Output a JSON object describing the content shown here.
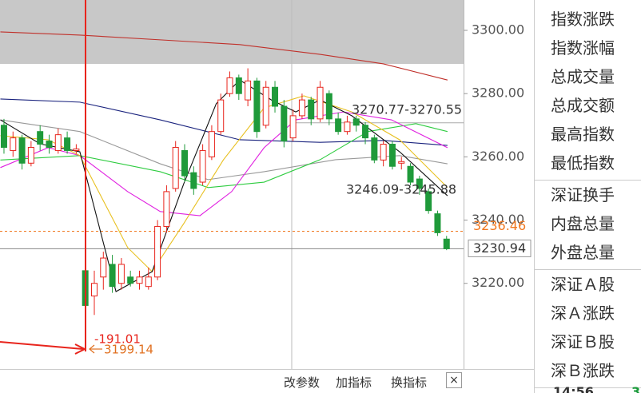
{
  "chart_data": {
    "type": "candlestick",
    "x": [
      0,
      1,
      2,
      3,
      4,
      5,
      6,
      7,
      8,
      9,
      10,
      11,
      12,
      13,
      14,
      15,
      16,
      17,
      18,
      19,
      20,
      21,
      22,
      23,
      24,
      25,
      26,
      27,
      28,
      29,
      30,
      31,
      32,
      33,
      34,
      35,
      36,
      37,
      38,
      39,
      40,
      41,
      42,
      43,
      44,
      45,
      46,
      47,
      48,
      49
    ],
    "open": [
      3270,
      3262,
      3266,
      3258,
      3268,
      3265,
      3262,
      3266,
      3262,
      3224,
      3216,
      3222,
      3226,
      3220,
      3222,
      3220,
      3219,
      3222,
      3238,
      3250,
      3262,
      3255,
      3252,
      3260,
      3268,
      3280,
      3285,
      3278,
      3284,
      3270,
      3282,
      3276,
      3266,
      3273,
      3278,
      3272,
      3280,
      3272,
      3268,
      3272,
      3270,
      3266,
      3259,
      3264,
      3258,
      3257,
      3253,
      3249,
      3242,
      3234
    ],
    "high": [
      3272,
      3268,
      3267,
      3265,
      3270,
      3267,
      3269,
      3268,
      3264,
      3228,
      3224,
      3230,
      3229,
      3228,
      3224,
      3224,
      3225,
      3240,
      3251,
      3265,
      3264,
      3257,
      3264,
      3270,
      3280,
      3287,
      3286,
      3288,
      3285,
      3284,
      3284,
      3278,
      3275,
      3280,
      3279,
      3284,
      3281,
      3274,
      3273,
      3273,
      3271,
      3267,
      3265,
      3265,
      3260,
      3258,
      3254,
      3250,
      3243,
      3235
    ],
    "low": [
      3261,
      3260,
      3256,
      3257,
      3262,
      3261,
      3261,
      3261,
      3261,
      3205.5,
      3210,
      3218,
      3217,
      3218,
      3219,
      3218,
      3218,
      3221,
      3236,
      3249,
      3252,
      3248,
      3251,
      3259,
      3267,
      3279,
      3278,
      3276,
      3266,
      3269,
      3274,
      3263,
      3265,
      3272,
      3270,
      3271,
      3270,
      3267,
      3267,
      3268,
      3264,
      3258,
      3257,
      3256,
      3256,
      3251,
      3248,
      3242,
      3235,
      3230.5
    ],
    "close": [
      3263,
      3266,
      3258,
      3263,
      3264,
      3263,
      3267,
      3262,
      3262.5,
      3213,
      3220,
      3228,
      3219,
      3226,
      3220,
      3222,
      3222,
      3238,
      3249,
      3263,
      3254,
      3250,
      3262,
      3268,
      3278,
      3285,
      3280,
      3284,
      3268,
      3282,
      3276,
      3265,
      3273,
      3278,
      3272,
      3282,
      3272,
      3268,
      3271,
      3270,
      3266,
      3259,
      3264,
      3257,
      3258.5,
      3252,
      3250,
      3243,
      3236,
      3230.94
    ],
    "up_color": "#e8241c",
    "down_color": "#1f9a3a",
    "lines": [
      {
        "color": "#c0302a",
        "x": [
          -0.4,
          8.4,
          17.3,
          26.1,
          35,
          42,
          49.1
        ],
        "values": [
          3299.5,
          3298.5,
          3297,
          3295.5,
          3292.4,
          3289.4,
          3284.3
        ]
      },
      {
        "color": "#1a237e",
        "x": [
          -0.4,
          8.4,
          17.3,
          26.1,
          35,
          42,
          49.1
        ],
        "values": [
          3278.3,
          3277.3,
          3271.7,
          3265.4,
          3264.6,
          3265.2,
          3263.6
        ]
      },
      {
        "color": "#999999",
        "x": [
          -0.4,
          8.4,
          17.3,
          22.6,
          28.8,
          36.7,
          43.8,
          49.1
        ],
        "values": [
          3271.7,
          3268,
          3257.8,
          3252.8,
          3255.3,
          3259.1,
          3260.4,
          3257.8
        ]
      },
      {
        "color": "#2ecc40",
        "x": [
          -0.4,
          8.4,
          17.3,
          22.6,
          28.8,
          35,
          40.3,
          45.6,
          49.1
        ],
        "values": [
          3259,
          3260.4,
          3255.3,
          3250.3,
          3252,
          3259.1,
          3268,
          3270.5,
          3268
        ]
      },
      {
        "color": "#e020e0",
        "x": [
          -0.4,
          4.9,
          8.4,
          13.7,
          17.3,
          21.7,
          25.2,
          28.8,
          32.3,
          37.6,
          42.9,
          49.1
        ],
        "values": [
          3256.6,
          3262.9,
          3260.4,
          3249,
          3242.7,
          3241.4,
          3249,
          3262.9,
          3271.7,
          3274.2,
          3271.7,
          3262.9
        ]
      },
      {
        "color": "#e8c020",
        "x": [
          -0.4,
          4.9,
          8.4,
          13.7,
          16.4,
          19.9,
          24.3,
          28.8,
          33.2,
          38.5,
          43.8,
          49.1
        ],
        "values": [
          3266.7,
          3265.4,
          3260.4,
          3231.3,
          3223.7,
          3238.9,
          3259.1,
          3275.5,
          3279.3,
          3274.2,
          3265.4,
          3250.3
        ]
      },
      {
        "color": "#111111",
        "x": [
          -0.4,
          4,
          8.4,
          12.4,
          16.4,
          19.9,
          23.5,
          26.1,
          29.6,
          32.3,
          35,
          38.5,
          43.8,
          49.1
        ],
        "values": [
          3271.7,
          3264.1,
          3261.6,
          3217.4,
          3223.7,
          3251.5,
          3276.8,
          3284.3,
          3278,
          3274.2,
          3278,
          3273,
          3261.6,
          3247.7
        ]
      }
    ],
    "xlim": [
      -0.44,
      50.88
    ],
    "ylim": [
      3192.9,
      3309.6
    ],
    "yticks": [
      {
        "value": 3300,
        "label": "3300.00"
      },
      {
        "value": 3280,
        "label": "3280.00"
      },
      {
        "value": 3260,
        "label": "3260.00"
      },
      {
        "value": 3240,
        "label": "3240.00"
      },
      {
        "value": 3220,
        "label": "3220.00"
      }
    ],
    "ref_line": 3270.77,
    "avg_price": 3236.46,
    "last_price": 3230.94,
    "annotations": [
      "3270.77-3270.55",
      "3246.09-3245.88",
      "-191.01",
      "3199.14"
    ]
  },
  "toolbar": [
    "改参数",
    "加指标",
    "换指标",
    "×"
  ],
  "side_panel": {
    "groups": [
      [
        "指数涨跌",
        "指数涨幅",
        "总成交量",
        "总成交额",
        "最高指数",
        "最低指数"
      ],
      [
        "深证换手",
        "内盘总量",
        "外盘总量"
      ],
      [
        "深证Ａ股",
        "深Ａ涨跌",
        "深证Ｂ股",
        "深Ｂ涨跌"
      ]
    ]
  },
  "status": {
    "time": "14:56",
    "value": "3"
  }
}
